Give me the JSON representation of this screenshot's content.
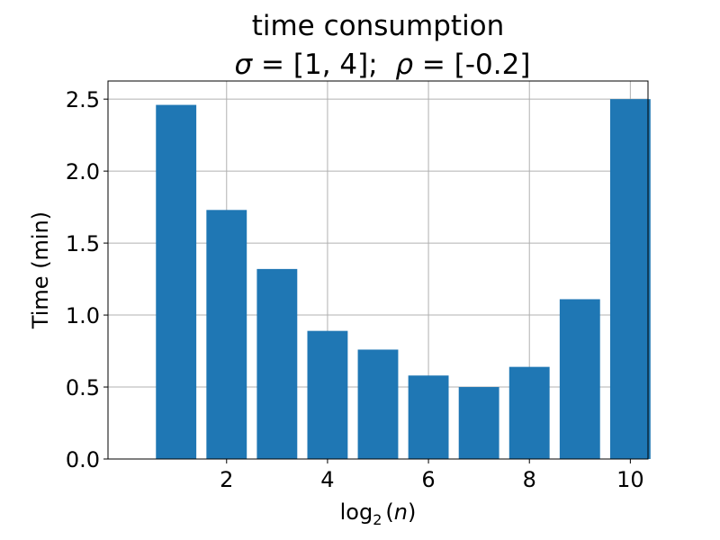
{
  "chart_data": {
    "type": "bar",
    "title": "time consumption",
    "subtitle_parts": {
      "sigma_symbol": "σ",
      "sigma_value": " = [1, 4];  ",
      "rho_symbol": "ρ",
      "rho_value": " = [-0.2]"
    },
    "xlabel_parts": {
      "log": "log",
      "base": "2",
      "arg_open": "(",
      "arg": "n",
      "arg_close": ")"
    },
    "ylabel": "Time (min)",
    "x": [
      1,
      2,
      3,
      4,
      5,
      6,
      7,
      8,
      9,
      10
    ],
    "values": [
      2.46,
      1.73,
      1.32,
      0.89,
      0.76,
      0.58,
      0.5,
      0.64,
      1.11,
      2.5
    ],
    "xlim": [
      -0.35,
      10.35
    ],
    "ylim": [
      0,
      2.626
    ],
    "xticks": [
      2,
      4,
      6,
      8,
      10
    ],
    "yticks": [
      0.0,
      0.5,
      1.0,
      1.5,
      2.0,
      2.5
    ],
    "ytick_labels": [
      "0.0",
      "0.5",
      "1.0",
      "1.5",
      "2.0",
      "2.5"
    ],
    "grid": true,
    "bar_color": "#1f77b4",
    "grid_color": "#b0b0b0"
  }
}
